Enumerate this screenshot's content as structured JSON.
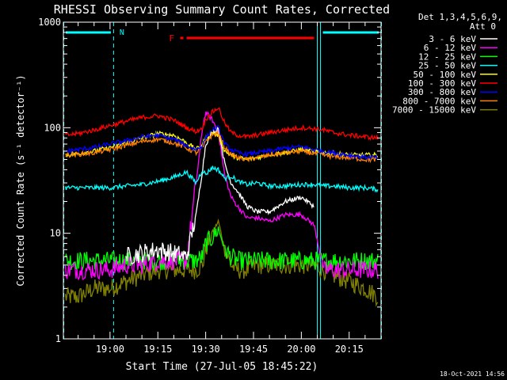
{
  "chart_data": {
    "type": "line",
    "title": "RHESSI Observing Summary Count Rates, Corrected",
    "xlabel": "Start Time (27-Jul-05 18:45:22)",
    "ylabel": "Corrected Count Rate (s⁻¹ detector⁻¹)",
    "yscale": "log",
    "ylim": [
      1,
      1000
    ],
    "xlim": [
      "18:45:22",
      "20:25:00"
    ],
    "x_ticks": [
      "19:00",
      "19:15",
      "19:30",
      "19:45",
      "20:00",
      "20:15"
    ],
    "y_ticks": [
      "1",
      "10",
      "100",
      "1000"
    ],
    "x_times": [
      "18:46",
      "18:50",
      "18:55",
      "19:00",
      "19:05",
      "19:10",
      "19:15",
      "19:20",
      "19:24",
      "19:27",
      "19:29",
      "19:30",
      "19:32",
      "19:34",
      "19:36",
      "19:38",
      "19:40",
      "19:43",
      "19:46",
      "19:50",
      "19:55",
      "20:00",
      "20:04",
      "20:07",
      "20:10",
      "20:15",
      "20:20",
      "20:24"
    ],
    "legend_header": [
      "Det 1,3,4,5,6,9,",
      "Att 0"
    ],
    "legend_position": "right",
    "series": [
      {
        "name": "3 - 6 keV",
        "color": "#ffffff",
        "values": [
          null,
          null,
          null,
          null,
          6,
          6.5,
          7,
          6.5,
          6,
          15,
          40,
          70,
          90,
          100,
          45,
          30,
          25,
          18,
          16,
          16,
          20,
          22,
          18,
          null,
          null,
          null,
          null,
          null
        ]
      },
      {
        "name": "6 - 12 keV",
        "color": "#ff00ff",
        "values": [
          4.5,
          4.5,
          4.5,
          4.5,
          5,
          5,
          5.5,
          5.5,
          5.5,
          30,
          100,
          140,
          120,
          90,
          35,
          22,
          18,
          14,
          14,
          13,
          15,
          15,
          12,
          4.5,
          4.5,
          4.5,
          4.5,
          4.5
        ]
      },
      {
        "name": "12 - 25 keV",
        "color": "#00ff00",
        "values": [
          5.5,
          5.5,
          5.5,
          5.5,
          5.5,
          5.5,
          5.5,
          5.5,
          5.5,
          5.5,
          6,
          8,
          9,
          11,
          7,
          6,
          5.5,
          5.5,
          5.5,
          5.5,
          5.5,
          5.5,
          5.5,
          5.5,
          5.5,
          5.5,
          5.5,
          5.5
        ]
      },
      {
        "name": "25 - 50 keV",
        "color": "#00ffff",
        "values": [
          27,
          27,
          27,
          27,
          28,
          29,
          31,
          34,
          38,
          30,
          40,
          36,
          42,
          40,
          33,
          35,
          31,
          29,
          30,
          28,
          28,
          29,
          29,
          28,
          28,
          27,
          27,
          26
        ]
      },
      {
        "name": "50 - 100 keV",
        "color": "#ffff00",
        "values": [
          55,
          57,
          60,
          65,
          72,
          80,
          88,
          85,
          72,
          62,
          70,
          80,
          90,
          85,
          60,
          55,
          52,
          50,
          52,
          56,
          58,
          62,
          60,
          58,
          57,
          55,
          55,
          55
        ]
      },
      {
        "name": "100 - 300 keV",
        "color": "#ff0000",
        "values": [
          85,
          88,
          95,
          105,
          115,
          125,
          130,
          118,
          100,
          92,
          100,
          120,
          140,
          155,
          110,
          90,
          85,
          82,
          85,
          90,
          95,
          100,
          98,
          95,
          90,
          85,
          82,
          80
        ]
      },
      {
        "name": "300 - 800 keV",
        "color": "#0000ff",
        "values": [
          60,
          62,
          65,
          70,
          75,
          82,
          85,
          78,
          68,
          62,
          68,
          80,
          95,
          100,
          70,
          62,
          58,
          56,
          58,
          60,
          64,
          66,
          62,
          60,
          58,
          55,
          53,
          52
        ]
      },
      {
        "name": "800 - 7000 keV",
        "color": "#ff8000",
        "values": [
          55,
          56,
          58,
          62,
          68,
          74,
          78,
          72,
          64,
          58,
          64,
          74,
          85,
          90,
          65,
          56,
          52,
          50,
          52,
          55,
          58,
          60,
          57,
          55,
          53,
          52,
          50,
          50
        ]
      },
      {
        "name": "7000 - 15000 keV",
        "color": "#808000",
        "values": [
          2.5,
          2.5,
          3,
          3,
          3.5,
          4,
          4.5,
          4.5,
          4.5,
          4.5,
          5,
          7,
          10,
          13,
          7,
          5,
          4.5,
          4.5,
          5,
          5,
          5,
          5,
          5,
          4.5,
          4,
          3.5,
          3,
          2.5
        ]
      }
    ],
    "markers": {
      "N_label": "N",
      "F_label": "F",
      "night_intervals": [
        [
          "18:45:22",
          "19:01"
        ],
        [
          "20:06",
          "20:25"
        ]
      ],
      "flare_intervals": [
        [
          "19:22",
          "19:23"
        ],
        [
          "19:24",
          "20:04"
        ]
      ],
      "vertical_lines_time": [
        "19:01",
        "20:05",
        "20:06"
      ]
    }
  },
  "timestamp_label": "18-Oct-2021 14:56",
  "colors": {
    "background": "#000000",
    "axes": "#ffffff",
    "night": "#00ffff",
    "flare": "#ff0000"
  }
}
